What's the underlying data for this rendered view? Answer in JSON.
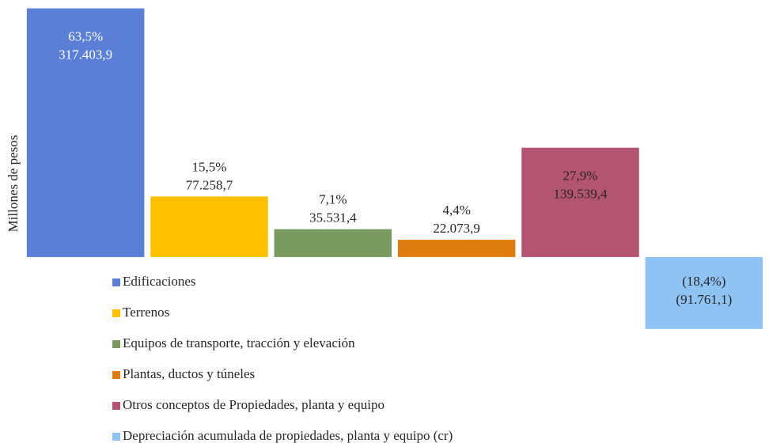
{
  "chart_data": {
    "type": "bar",
    "y_label": "Millones  de pesos",
    "categories": [
      "Edificaciones",
      "Terrenos",
      "Equipos de transporte, tracción y elevación",
      "Plantas, ductos y túneles",
      "Otros conceptos de Propiedades, planta y equipo",
      "Depreciación acumulada de propiedades, planta y equipo (cr)"
    ],
    "values": [
      317403.9,
      77258.7,
      35531.4,
      22073.9,
      139539.4,
      -91761.1
    ],
    "value_labels": [
      "317.403,9",
      "77.258,7",
      "35.531,4",
      "22.073,9",
      "139.539,4",
      "(91.761,1)"
    ],
    "share_labels": [
      "63,5%",
      "15,5%",
      "7,1%",
      "4,4%",
      "27,9%",
      "(18,4%)"
    ],
    "colors": [
      "#5b7fd6",
      "#ffc000",
      "#7a9a60",
      "#e07d10",
      "#b45473",
      "#8fc3f4"
    ],
    "ylim": [
      -95000,
      320000
    ],
    "legend": "bottom"
  }
}
